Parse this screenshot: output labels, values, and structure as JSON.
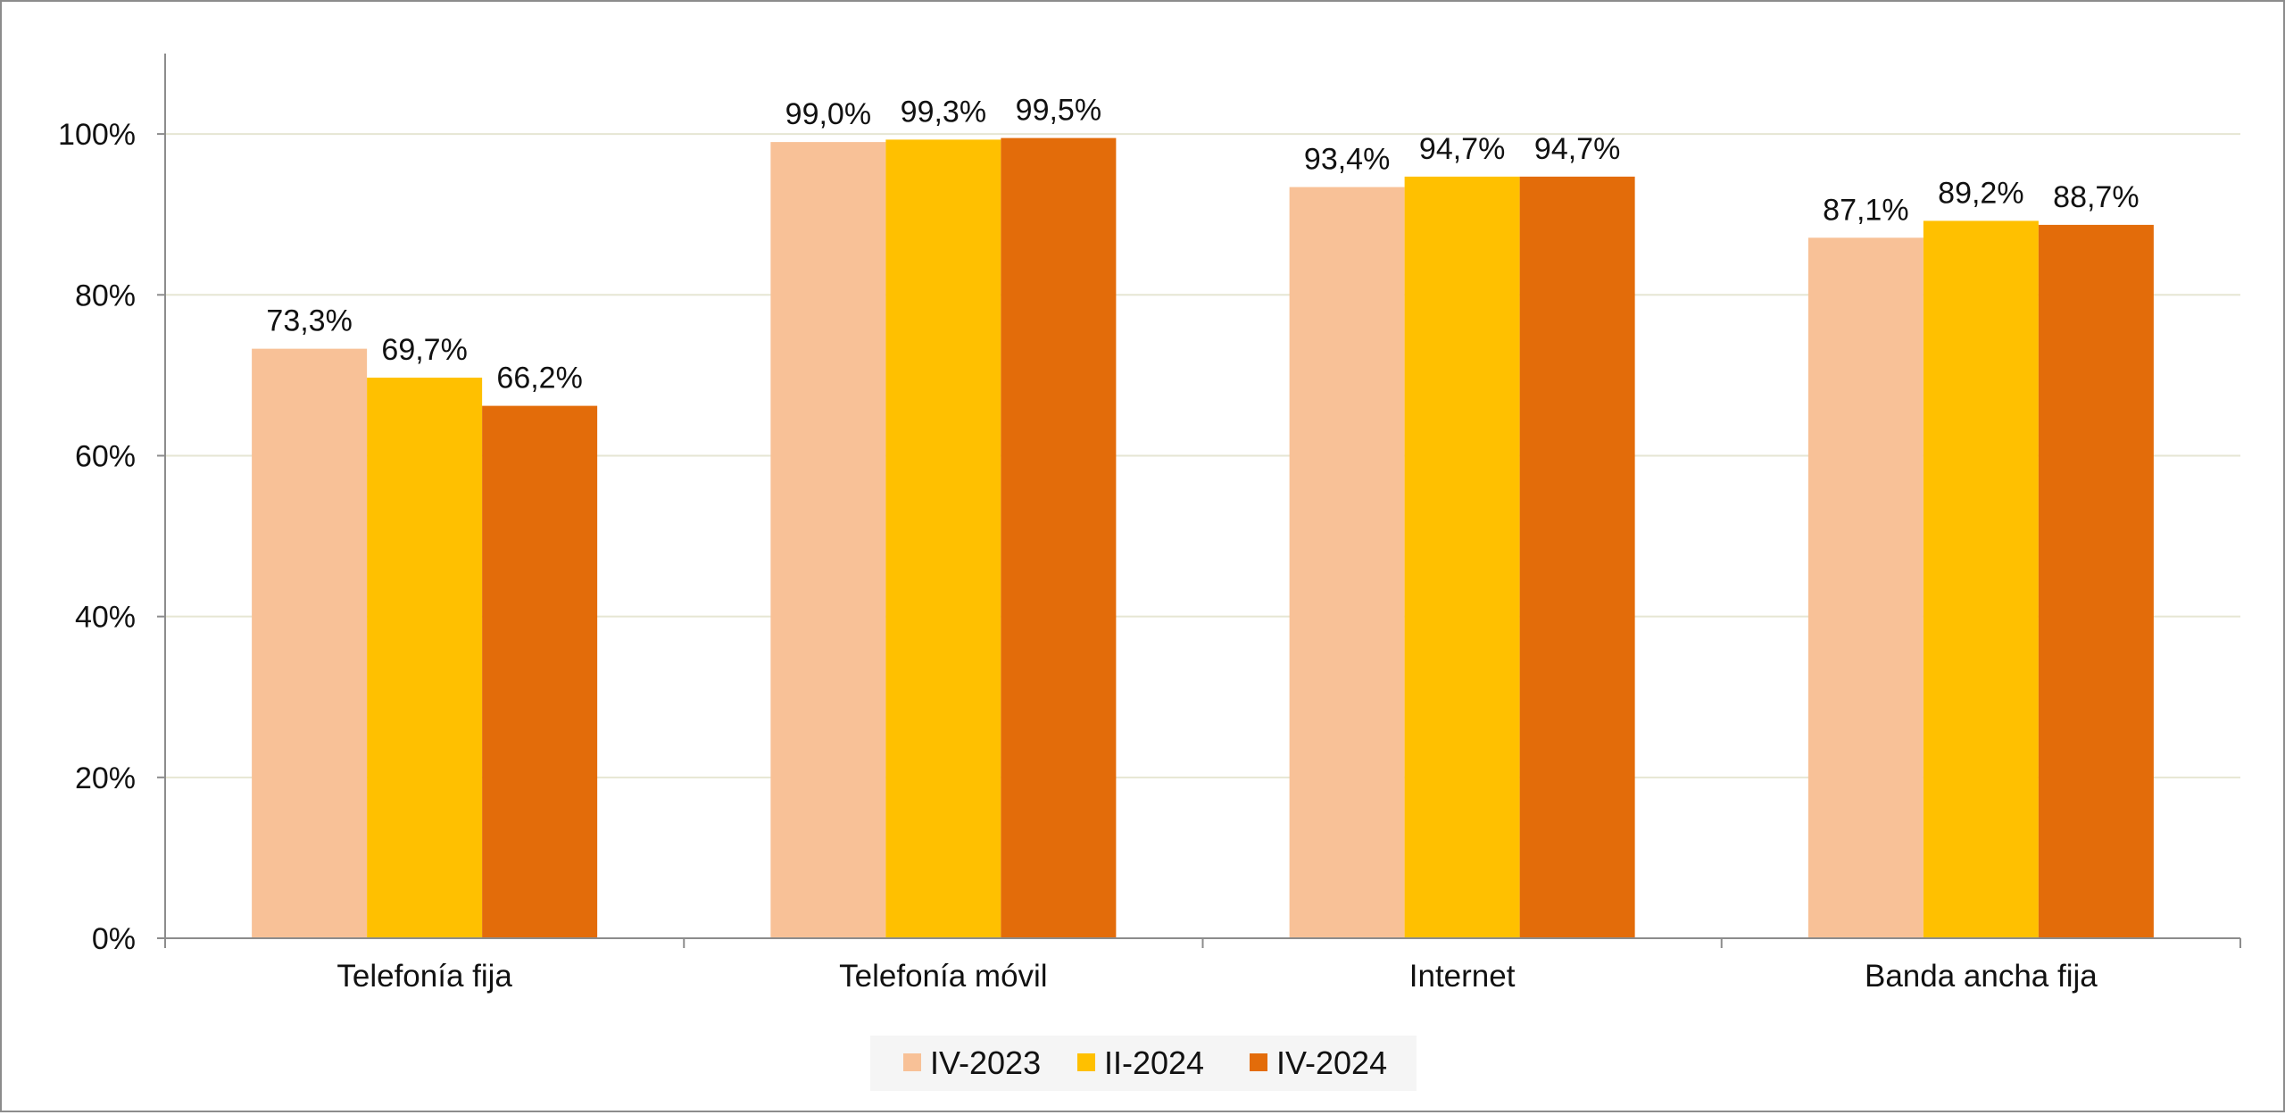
{
  "chart_data": {
    "type": "bar",
    "title": "",
    "xlabel": "",
    "ylabel": "",
    "categories": [
      "Telefonía fija",
      "Telefonía móvil",
      "Internet",
      "Banda ancha fija"
    ],
    "series": [
      {
        "name": "IV-2023",
        "color": "#F8C197",
        "values": [
          73.3,
          99.0,
          93.4,
          87.1
        ],
        "labels": [
          "73,3%",
          "99,0%",
          "93,4%",
          "87,1%"
        ]
      },
      {
        "name": "II-2024",
        "color": "#FFC000",
        "values": [
          69.7,
          99.3,
          94.7,
          89.2
        ],
        "labels": [
          "69,7%",
          "99,3%",
          "94,7%",
          "89,2%"
        ]
      },
      {
        "name": "IV-2024",
        "color": "#E36C0A",
        "values": [
          66.2,
          99.5,
          94.7,
          88.7
        ],
        "labels": [
          "66,2%",
          "99,5%",
          "94,7%",
          "88,7%"
        ]
      }
    ],
    "ylim": [
      0,
      110
    ],
    "yticks": [
      0,
      20,
      40,
      60,
      80,
      100
    ],
    "ytick_labels": [
      "0%",
      "20%",
      "40%",
      "60%",
      "80%",
      "100%"
    ],
    "grid": true,
    "grid_color": "#E6E6D3",
    "legend_position": "bottom-center"
  }
}
